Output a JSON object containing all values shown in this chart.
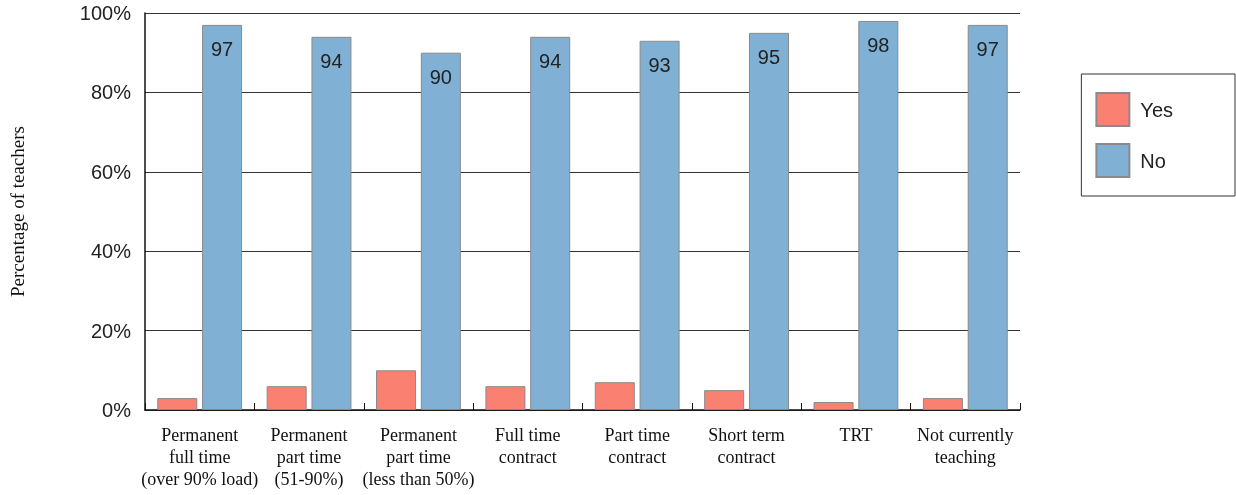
{
  "chart_data": {
    "type": "bar",
    "ylabel": "Percentage of teachers",
    "categories": [
      "Permanent\nfull time\n(over 90% load)",
      "Permanent\npart time\n(51-90%)",
      "Permanent\npart time\n(less than 50%)",
      "Full time\ncontract",
      "Part time\ncontract",
      "Short term\ncontract",
      "TRT",
      "Not currently\nteaching"
    ],
    "series": [
      {
        "name": "Yes",
        "color": "#fa8072",
        "values": [
          3,
          6,
          10,
          6,
          7,
          5,
          2,
          3
        ]
      },
      {
        "name": "No",
        "color": "#80b1d4",
        "values": [
          97,
          94,
          90,
          94,
          93,
          95,
          98,
          97
        ],
        "value_labels": [
          "97",
          "94",
          "90",
          "94",
          "93",
          "95",
          "98",
          "97"
        ]
      }
    ],
    "ylim": [
      0,
      100
    ],
    "yticks": [
      {
        "value": 0,
        "label": "0%"
      },
      {
        "value": 20,
        "label": "20%"
      },
      {
        "value": 40,
        "label": "40%"
      },
      {
        "value": 60,
        "label": "60%"
      },
      {
        "value": 80,
        "label": "80%"
      },
      {
        "value": 100,
        "label": "100%"
      }
    ],
    "grid": "y",
    "legend": "right"
  }
}
